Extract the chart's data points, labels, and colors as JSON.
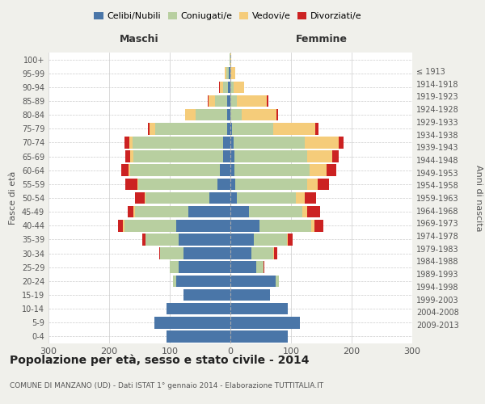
{
  "age_groups": [
    "0-4",
    "5-9",
    "10-14",
    "15-19",
    "20-24",
    "25-29",
    "30-34",
    "35-39",
    "40-44",
    "45-49",
    "50-54",
    "55-59",
    "60-64",
    "65-69",
    "70-74",
    "75-79",
    "80-84",
    "85-89",
    "90-94",
    "95-99",
    "100+"
  ],
  "birth_years": [
    "2009-2013",
    "2004-2008",
    "1999-2003",
    "1994-1998",
    "1989-1993",
    "1984-1988",
    "1979-1983",
    "1974-1978",
    "1969-1973",
    "1964-1968",
    "1959-1963",
    "1954-1958",
    "1949-1953",
    "1944-1948",
    "1939-1943",
    "1934-1938",
    "1929-1933",
    "1924-1928",
    "1919-1923",
    "1914-1918",
    "≤ 1913"
  ],
  "maschi": {
    "celibi": [
      105,
      125,
      105,
      78,
      90,
      85,
      78,
      85,
      90,
      70,
      35,
      22,
      18,
      12,
      12,
      6,
      5,
      6,
      4,
      3,
      0
    ],
    "coniugati": [
      0,
      0,
      0,
      0,
      5,
      15,
      38,
      55,
      85,
      88,
      105,
      130,
      148,
      148,
      150,
      118,
      52,
      20,
      8,
      4,
      1
    ],
    "vedovi": [
      0,
      0,
      0,
      0,
      0,
      0,
      0,
      0,
      3,
      2,
      2,
      2,
      2,
      5,
      5,
      10,
      18,
      10,
      5,
      2,
      0
    ],
    "divorziati": [
      0,
      0,
      0,
      0,
      0,
      0,
      2,
      5,
      8,
      10,
      15,
      20,
      12,
      8,
      8,
      2,
      0,
      2,
      2,
      0,
      0
    ]
  },
  "femmine": {
    "nubili": [
      95,
      115,
      95,
      65,
      75,
      42,
      35,
      38,
      48,
      30,
      10,
      8,
      6,
      6,
      5,
      2,
      0,
      0,
      0,
      0,
      0
    ],
    "coniugate": [
      0,
      0,
      0,
      0,
      5,
      12,
      35,
      55,
      85,
      88,
      98,
      118,
      125,
      120,
      118,
      68,
      18,
      10,
      5,
      0,
      0
    ],
    "vedove": [
      0,
      0,
      0,
      0,
      0,
      0,
      2,
      2,
      5,
      8,
      15,
      18,
      28,
      42,
      55,
      70,
      58,
      50,
      18,
      8,
      1
    ],
    "divorziate": [
      0,
      0,
      0,
      0,
      0,
      2,
      5,
      8,
      15,
      22,
      18,
      18,
      15,
      10,
      8,
      5,
      2,
      2,
      0,
      0,
      0
    ]
  },
  "colors": {
    "celibi": "#4a76a8",
    "coniugati": "#b8cfa0",
    "vedovi": "#f5cc7a",
    "divorziati": "#cc2222"
  },
  "xlim": 300,
  "title": "Popolazione per età, sesso e stato civile - 2014",
  "subtitle": "COMUNE DI MANZANO (UD) - Dati ISTAT 1° gennaio 2014 - Elaborazione TUTTITALIA.IT",
  "xlabel_left": "Maschi",
  "xlabel_right": "Femmine",
  "ylabel_left": "Fasce di età",
  "ylabel_right": "Anni di nascita",
  "bg_color": "#f0f0eb",
  "plot_bg": "#ffffff"
}
